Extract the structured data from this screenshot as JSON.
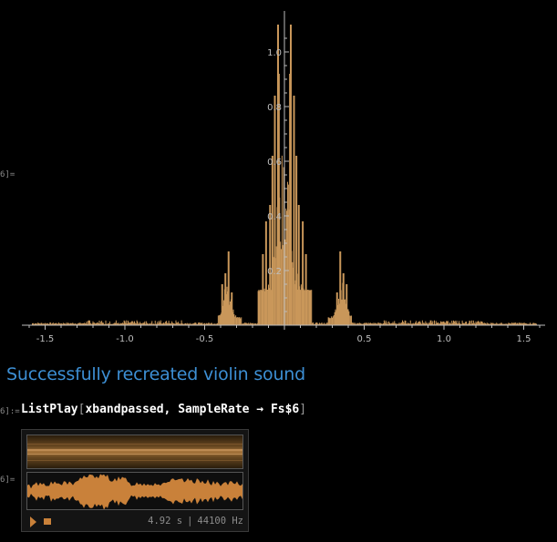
{
  "cell_labels": {
    "plot_output": "6]=",
    "input": "6]:=",
    "sound_output": "6]="
  },
  "section_title": "Successfully recreated violin sound",
  "code": {
    "function": "ListPlay",
    "open_bracket": "[",
    "arguments": "xbandpassed, SampleRate → Fs$6",
    "close_bracket": "]"
  },
  "sound_player": {
    "duration": "4.92 s",
    "separator": "|",
    "sample_rate": "44100 Hz",
    "play_icon": "play-icon",
    "stop_icon": "stop-icon"
  },
  "colors": {
    "background": "#000000",
    "plot_line": "#c9975a",
    "axis": "#bdbdbd",
    "title": "#3d8fd4",
    "waveform": "#c9813a"
  },
  "chart_data": {
    "type": "line",
    "title": "",
    "xlabel": "",
    "ylabel": "",
    "xlim": [
      -1.65,
      1.65
    ],
    "ylim": [
      0,
      1.12
    ],
    "x_ticks": [
      "-1.5",
      "-1.0",
      "-0.5",
      "0.5",
      "1.0",
      "1.5"
    ],
    "x_tick_values": [
      -1.5,
      -1.0,
      -0.5,
      0.5,
      1.0,
      1.5
    ],
    "y_ticks": [
      "0.2",
      "0.4",
      "0.6",
      "0.8",
      "1.0"
    ],
    "y_tick_values": [
      0.2,
      0.4,
      0.6,
      0.8,
      1.0
    ],
    "grid": false,
    "series": [
      {
        "values_description_free": true,
        "peaks": [
          {
            "x": -0.04,
            "y": 1.1
          },
          {
            "x": 0.04,
            "y": 1.1
          },
          {
            "x": -0.035,
            "y": 0.92
          },
          {
            "x": 0.035,
            "y": 0.92
          },
          {
            "x": -0.06,
            "y": 0.84
          },
          {
            "x": 0.06,
            "y": 0.84
          },
          {
            "x": -0.075,
            "y": 0.62
          },
          {
            "x": 0.075,
            "y": 0.62
          },
          {
            "x": -0.09,
            "y": 0.44
          },
          {
            "x": 0.09,
            "y": 0.44
          },
          {
            "x": -0.115,
            "y": 0.38
          },
          {
            "x": 0.115,
            "y": 0.38
          },
          {
            "x": -0.135,
            "y": 0.26
          },
          {
            "x": 0.135,
            "y": 0.26
          },
          {
            "x": -0.35,
            "y": 0.27
          },
          {
            "x": 0.35,
            "y": 0.27
          },
          {
            "x": -0.37,
            "y": 0.19
          },
          {
            "x": 0.37,
            "y": 0.19
          },
          {
            "x": -0.39,
            "y": 0.15
          },
          {
            "x": 0.39,
            "y": 0.15
          },
          {
            "x": -0.33,
            "y": 0.12
          },
          {
            "x": 0.33,
            "y": 0.12
          }
        ]
      }
    ]
  }
}
